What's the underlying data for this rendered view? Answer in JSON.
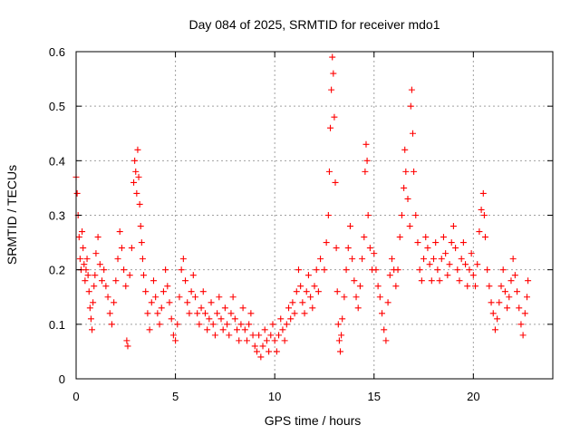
{
  "chart_data": {
    "type": "scatter",
    "title": "Day 084 of 2025, SRMTID for receiver mdo1",
    "xlabel": "GPS time / hours",
    "ylabel": "SRMTID / TECUs",
    "xlim": [
      0,
      24
    ],
    "ylim": [
      0,
      0.6
    ],
    "x_ticks": [
      0,
      5,
      10,
      15,
      20
    ],
    "x_tick_labels": [
      "0",
      "5",
      "10",
      "15",
      "20"
    ],
    "y_ticks": [
      0,
      0.1,
      0.2,
      0.3,
      0.4,
      0.5,
      0.6
    ],
    "y_tick_labels": [
      "0",
      "0.1",
      "0.2",
      "0.3",
      "0.4",
      "0.5",
      "0.6"
    ],
    "grid": true,
    "marker": "+",
    "marker_color": "#ff0000",
    "series": [
      {
        "name": "SRMTID",
        "points": [
          [
            0.0,
            0.37
          ],
          [
            0.05,
            0.34
          ],
          [
            0.1,
            0.3
          ],
          [
            0.15,
            0.26
          ],
          [
            0.2,
            0.22
          ],
          [
            0.25,
            0.2
          ],
          [
            0.3,
            0.27
          ],
          [
            0.35,
            0.24
          ],
          [
            0.4,
            0.21
          ],
          [
            0.45,
            0.18
          ],
          [
            0.5,
            0.2
          ],
          [
            0.55,
            0.22
          ],
          [
            0.6,
            0.19
          ],
          [
            0.65,
            0.16
          ],
          [
            0.7,
            0.13
          ],
          [
            0.75,
            0.11
          ],
          [
            0.8,
            0.09
          ],
          [
            0.85,
            0.14
          ],
          [
            0.9,
            0.17
          ],
          [
            0.95,
            0.19
          ],
          [
            1.0,
            0.23
          ],
          [
            1.1,
            0.26
          ],
          [
            1.2,
            0.21
          ],
          [
            1.3,
            0.18
          ],
          [
            1.4,
            0.2
          ],
          [
            1.5,
            0.17
          ],
          [
            1.6,
            0.15
          ],
          [
            1.7,
            0.12
          ],
          [
            1.8,
            0.1
          ],
          [
            1.9,
            0.14
          ],
          [
            2.0,
            0.18
          ],
          [
            2.1,
            0.22
          ],
          [
            2.2,
            0.27
          ],
          [
            2.3,
            0.24
          ],
          [
            2.4,
            0.2
          ],
          [
            2.5,
            0.17
          ],
          [
            2.55,
            0.07
          ],
          [
            2.6,
            0.06
          ],
          [
            2.7,
            0.19
          ],
          [
            2.8,
            0.24
          ],
          [
            2.9,
            0.36
          ],
          [
            2.95,
            0.4
          ],
          [
            3.0,
            0.38
          ],
          [
            3.05,
            0.34
          ],
          [
            3.1,
            0.42
          ],
          [
            3.15,
            0.37
          ],
          [
            3.2,
            0.32
          ],
          [
            3.25,
            0.28
          ],
          [
            3.3,
            0.25
          ],
          [
            3.35,
            0.22
          ],
          [
            3.4,
            0.19
          ],
          [
            3.5,
            0.16
          ],
          [
            3.6,
            0.12
          ],
          [
            3.7,
            0.09
          ],
          [
            3.8,
            0.14
          ],
          [
            3.9,
            0.18
          ],
          [
            4.0,
            0.15
          ],
          [
            4.1,
            0.12
          ],
          [
            4.2,
            0.1
          ],
          [
            4.3,
            0.13
          ],
          [
            4.4,
            0.16
          ],
          [
            4.5,
            0.2
          ],
          [
            4.6,
            0.17
          ],
          [
            4.7,
            0.14
          ],
          [
            4.8,
            0.11
          ],
          [
            4.9,
            0.08
          ],
          [
            5.0,
            0.07
          ],
          [
            5.1,
            0.1
          ],
          [
            5.2,
            0.15
          ],
          [
            5.3,
            0.2
          ],
          [
            5.4,
            0.22
          ],
          [
            5.5,
            0.18
          ],
          [
            5.6,
            0.14
          ],
          [
            5.7,
            0.12
          ],
          [
            5.8,
            0.16
          ],
          [
            5.9,
            0.19
          ],
          [
            6.0,
            0.15
          ],
          [
            6.1,
            0.12
          ],
          [
            6.2,
            0.1
          ],
          [
            6.3,
            0.13
          ],
          [
            6.4,
            0.16
          ],
          [
            6.5,
            0.12
          ],
          [
            6.6,
            0.09
          ],
          [
            6.7,
            0.11
          ],
          [
            6.8,
            0.14
          ],
          [
            6.9,
            0.1
          ],
          [
            7.0,
            0.08
          ],
          [
            7.1,
            0.12
          ],
          [
            7.2,
            0.15
          ],
          [
            7.3,
            0.11
          ],
          [
            7.4,
            0.09
          ],
          [
            7.5,
            0.13
          ],
          [
            7.6,
            0.1
          ],
          [
            7.7,
            0.08
          ],
          [
            7.8,
            0.12
          ],
          [
            7.9,
            0.15
          ],
          [
            8.0,
            0.11
          ],
          [
            8.1,
            0.09
          ],
          [
            8.2,
            0.07
          ],
          [
            8.3,
            0.1
          ],
          [
            8.4,
            0.13
          ],
          [
            8.5,
            0.09
          ],
          [
            8.6,
            0.07
          ],
          [
            8.7,
            0.1
          ],
          [
            8.8,
            0.12
          ],
          [
            8.9,
            0.08
          ],
          [
            9.0,
            0.06
          ],
          [
            9.1,
            0.05
          ],
          [
            9.2,
            0.08
          ],
          [
            9.3,
            0.04
          ],
          [
            9.4,
            0.06
          ],
          [
            9.5,
            0.09
          ],
          [
            9.6,
            0.07
          ],
          [
            9.7,
            0.05
          ],
          [
            9.8,
            0.08
          ],
          [
            9.9,
            0.1
          ],
          [
            10.0,
            0.07
          ],
          [
            10.1,
            0.05
          ],
          [
            10.2,
            0.08
          ],
          [
            10.3,
            0.11
          ],
          [
            10.4,
            0.09
          ],
          [
            10.5,
            0.07
          ],
          [
            10.6,
            0.1
          ],
          [
            10.7,
            0.13
          ],
          [
            10.8,
            0.11
          ],
          [
            10.9,
            0.14
          ],
          [
            11.0,
            0.12
          ],
          [
            11.1,
            0.16
          ],
          [
            11.2,
            0.2
          ],
          [
            11.3,
            0.17
          ],
          [
            11.4,
            0.14
          ],
          [
            11.5,
            0.12
          ],
          [
            11.6,
            0.16
          ],
          [
            11.7,
            0.19
          ],
          [
            11.8,
            0.15
          ],
          [
            11.9,
            0.13
          ],
          [
            12.0,
            0.17
          ],
          [
            12.1,
            0.2
          ],
          [
            12.2,
            0.16
          ],
          [
            12.3,
            0.22
          ],
          [
            12.5,
            0.2
          ],
          [
            12.6,
            0.25
          ],
          [
            12.7,
            0.3
          ],
          [
            12.75,
            0.38
          ],
          [
            12.8,
            0.46
          ],
          [
            12.85,
            0.53
          ],
          [
            12.9,
            0.59
          ],
          [
            12.95,
            0.56
          ],
          [
            13.0,
            0.48
          ],
          [
            13.05,
            0.36
          ],
          [
            13.1,
            0.24
          ],
          [
            13.15,
            0.16
          ],
          [
            13.2,
            0.1
          ],
          [
            13.25,
            0.07
          ],
          [
            13.3,
            0.05
          ],
          [
            13.35,
            0.08
          ],
          [
            13.4,
            0.11
          ],
          [
            13.5,
            0.15
          ],
          [
            13.6,
            0.2
          ],
          [
            13.7,
            0.24
          ],
          [
            13.8,
            0.28
          ],
          [
            13.9,
            0.22
          ],
          [
            14.0,
            0.18
          ],
          [
            14.1,
            0.15
          ],
          [
            14.2,
            0.13
          ],
          [
            14.3,
            0.17
          ],
          [
            14.4,
            0.22
          ],
          [
            14.5,
            0.26
          ],
          [
            14.55,
            0.38
          ],
          [
            14.6,
            0.43
          ],
          [
            14.65,
            0.4
          ],
          [
            14.7,
            0.3
          ],
          [
            14.8,
            0.24
          ],
          [
            14.9,
            0.2
          ],
          [
            15.0,
            0.23
          ],
          [
            15.1,
            0.2
          ],
          [
            15.2,
            0.17
          ],
          [
            15.3,
            0.15
          ],
          [
            15.4,
            0.12
          ],
          [
            15.5,
            0.09
          ],
          [
            15.6,
            0.07
          ],
          [
            15.7,
            0.14
          ],
          [
            15.8,
            0.19
          ],
          [
            15.9,
            0.22
          ],
          [
            16.0,
            0.2
          ],
          [
            16.1,
            0.17
          ],
          [
            16.2,
            0.2
          ],
          [
            16.3,
            0.26
          ],
          [
            16.4,
            0.3
          ],
          [
            16.5,
            0.35
          ],
          [
            16.55,
            0.42
          ],
          [
            16.6,
            0.38
          ],
          [
            16.7,
            0.33
          ],
          [
            16.8,
            0.28
          ],
          [
            16.85,
            0.5
          ],
          [
            16.9,
            0.53
          ],
          [
            16.95,
            0.45
          ],
          [
            17.0,
            0.38
          ],
          [
            17.1,
            0.3
          ],
          [
            17.2,
            0.25
          ],
          [
            17.3,
            0.2
          ],
          [
            17.4,
            0.18
          ],
          [
            17.5,
            0.22
          ],
          [
            17.6,
            0.26
          ],
          [
            17.7,
            0.24
          ],
          [
            17.8,
            0.21
          ],
          [
            17.9,
            0.18
          ],
          [
            18.0,
            0.22
          ],
          [
            18.1,
            0.25
          ],
          [
            18.2,
            0.2
          ],
          [
            18.3,
            0.18
          ],
          [
            18.4,
            0.22
          ],
          [
            18.5,
            0.26
          ],
          [
            18.6,
            0.23
          ],
          [
            18.7,
            0.19
          ],
          [
            18.8,
            0.21
          ],
          [
            18.9,
            0.25
          ],
          [
            19.0,
            0.28
          ],
          [
            19.1,
            0.24
          ],
          [
            19.2,
            0.2
          ],
          [
            19.3,
            0.18
          ],
          [
            19.4,
            0.22
          ],
          [
            19.5,
            0.25
          ],
          [
            19.6,
            0.21
          ],
          [
            19.7,
            0.17
          ],
          [
            19.8,
            0.2
          ],
          [
            19.9,
            0.23
          ],
          [
            20.0,
            0.19
          ],
          [
            20.1,
            0.17
          ],
          [
            20.2,
            0.21
          ],
          [
            20.3,
            0.27
          ],
          [
            20.4,
            0.31
          ],
          [
            20.5,
            0.34
          ],
          [
            20.55,
            0.3
          ],
          [
            20.6,
            0.26
          ],
          [
            20.7,
            0.2
          ],
          [
            20.8,
            0.17
          ],
          [
            20.9,
            0.14
          ],
          [
            21.0,
            0.12
          ],
          [
            21.1,
            0.09
          ],
          [
            21.2,
            0.11
          ],
          [
            21.3,
            0.14
          ],
          [
            21.4,
            0.17
          ],
          [
            21.5,
            0.2
          ],
          [
            21.6,
            0.16
          ],
          [
            21.7,
            0.13
          ],
          [
            21.8,
            0.15
          ],
          [
            21.9,
            0.18
          ],
          [
            22.0,
            0.22
          ],
          [
            22.1,
            0.19
          ],
          [
            22.2,
            0.16
          ],
          [
            22.3,
            0.13
          ],
          [
            22.4,
            0.1
          ],
          [
            22.5,
            0.08
          ],
          [
            22.6,
            0.12
          ],
          [
            22.7,
            0.15
          ],
          [
            22.75,
            0.18
          ]
        ]
      }
    ]
  }
}
